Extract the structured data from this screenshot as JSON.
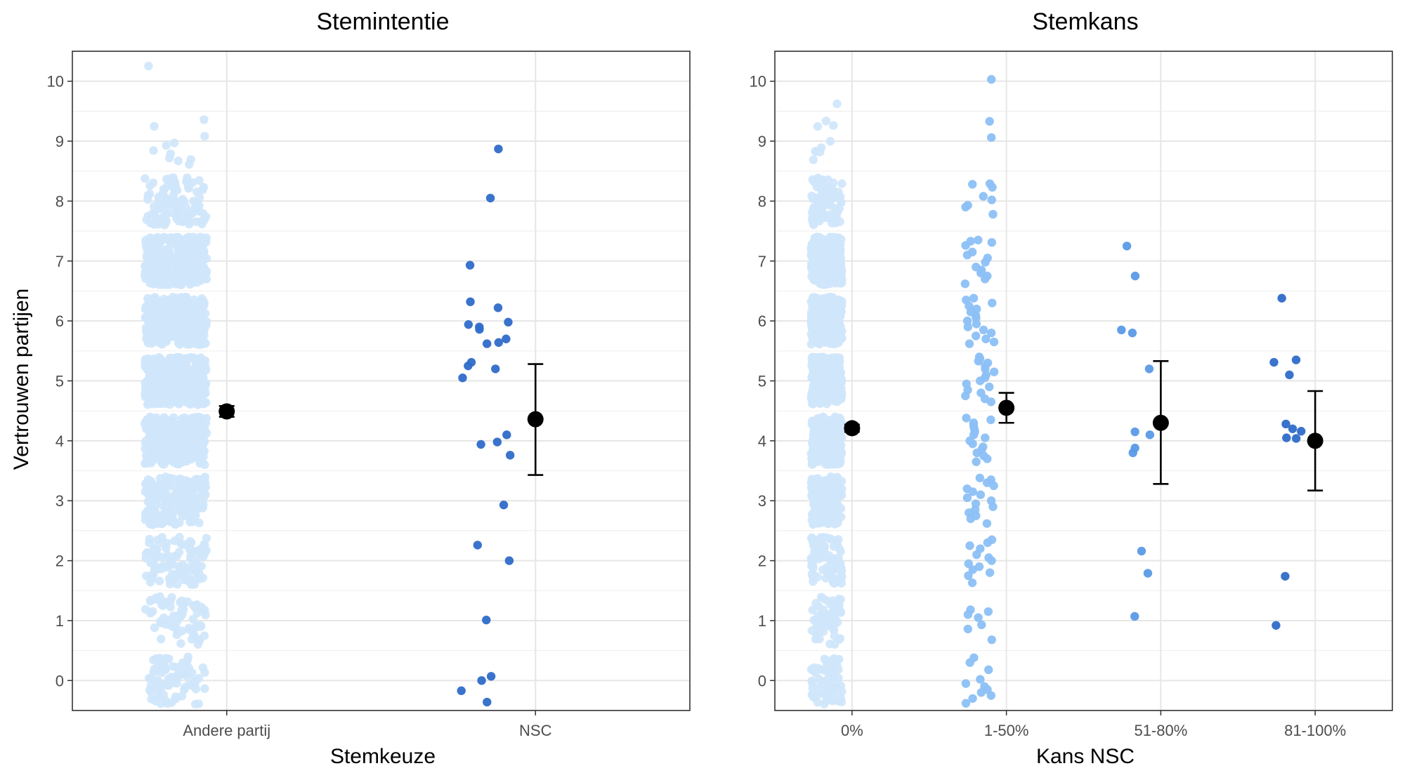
{
  "figure": {
    "y_axis_label": "Vertrouwen partijen"
  },
  "chart_data": [
    {
      "type": "scatter",
      "title": "Stemintentie",
      "xlabel": "Stemkeuze",
      "ylabel": "Vertrouwen partijen",
      "categories": [
        "Andere partij",
        "NSC"
      ],
      "ylim": [
        -0.5,
        10.5
      ],
      "yticks": [
        0,
        1,
        2,
        3,
        4,
        5,
        6,
        7,
        8,
        9,
        10
      ],
      "grid": true,
      "point_colors": [
        "#cfe6fb",
        "#2f6bc9"
      ],
      "jitter_points": [
        {
          "category": "Andere partij",
          "color": "#cfe6fb",
          "n": 1800,
          "levels": [
            0,
            1,
            2,
            3,
            4,
            5,
            6,
            7,
            8,
            9,
            10
          ],
          "weights": [
            70,
            60,
            90,
            170,
            260,
            280,
            300,
            280,
            90,
            10,
            1
          ]
        },
        {
          "category": "NSC",
          "color": "#2f6bc9",
          "values": [
            8.87,
            8.05,
            6.93,
            6.32,
            6.22,
            5.98,
            5.94,
            5.9,
            5.86,
            5.7,
            5.64,
            5.62,
            5.31,
            5.25,
            5.2,
            5.05,
            4.1,
            3.98,
            3.94,
            3.76,
            2.93,
            2.26,
            2.0,
            1.01,
            0.07,
            0.0,
            -0.17,
            -0.36
          ]
        }
      ],
      "summary": [
        {
          "category": "Andere partij",
          "mean": 4.49,
          "ci_low": 4.4,
          "ci_high": 4.58
        },
        {
          "category": "NSC",
          "mean": 4.36,
          "ci_low": 3.43,
          "ci_high": 5.28
        }
      ]
    },
    {
      "type": "scatter",
      "title": "Stemkans",
      "xlabel": "Kans NSC",
      "ylabel": "Vertrouwen partijen",
      "categories": [
        "0%",
        "1-50%",
        "51-80%",
        "81-100%"
      ],
      "ylim": [
        -0.5,
        10.5
      ],
      "yticks": [
        0,
        1,
        2,
        3,
        4,
        5,
        6,
        7,
        8,
        9,
        10
      ],
      "grid": true,
      "point_colors": [
        "#cfe6fb",
        "#8cc0f5",
        "#5a9ae6",
        "#2f6bc9"
      ],
      "jitter_points": [
        {
          "category": "0%",
          "color": "#cfe6fb",
          "n": 1500,
          "levels": [
            0,
            1,
            2,
            3,
            4,
            5,
            6,
            7,
            8,
            9,
            10
          ],
          "weights": [
            80,
            70,
            90,
            170,
            260,
            280,
            300,
            280,
            90,
            10,
            1
          ]
        },
        {
          "category": "1-50%",
          "color": "#8cc0f5",
          "values": [
            10.03,
            9.33,
            9.06,
            8.29,
            8.28,
            8.23,
            8.08,
            8.02,
            7.93,
            7.9,
            7.78,
            7.35,
            7.33,
            7.31,
            7.26,
            7.15,
            7.1,
            7.05,
            6.98,
            6.9,
            6.85,
            6.8,
            6.75,
            6.7,
            6.62,
            6.38,
            6.35,
            6.3,
            6.25,
            6.2,
            6.15,
            6.1,
            6.05,
            6.0,
            5.95,
            5.9,
            5.85,
            5.8,
            5.75,
            5.7,
            5.65,
            5.62,
            5.4,
            5.37,
            5.33,
            5.3,
            5.25,
            5.2,
            5.15,
            5.1,
            5.05,
            5.0,
            4.95,
            4.9,
            4.85,
            4.8,
            4.75,
            4.7,
            4.65,
            4.38,
            4.35,
            4.3,
            4.25,
            4.2,
            4.15,
            4.1,
            4.05,
            4.0,
            3.95,
            3.9,
            3.85,
            3.8,
            3.75,
            3.7,
            3.65,
            3.38,
            3.35,
            3.3,
            3.25,
            3.2,
            3.15,
            3.1,
            3.05,
            3.0,
            2.95,
            2.9,
            2.85,
            2.8,
            2.75,
            2.7,
            2.62,
            2.35,
            2.3,
            2.25,
            2.2,
            2.1,
            2.05,
            2.0,
            1.95,
            1.9,
            1.85,
            1.8,
            1.75,
            1.63,
            1.18,
            1.15,
            1.1,
            1.05,
            0.93,
            0.86,
            0.68,
            0.38,
            0.3,
            0.18,
            0.02,
            -0.05,
            -0.1,
            -0.15,
            -0.2,
            -0.25,
            -0.3,
            -0.38
          ]
        },
        {
          "category": "51-80%",
          "color": "#5a9ae6",
          "values": [
            7.25,
            6.75,
            5.85,
            5.8,
            5.2,
            4.15,
            4.1,
            3.88,
            3.8,
            2.16,
            1.79,
            1.07
          ]
        },
        {
          "category": "81-100%",
          "color": "#2f6bc9",
          "values": [
            6.38,
            5.35,
            5.31,
            5.1,
            4.28,
            4.2,
            4.16,
            4.05,
            4.04,
            1.74,
            0.92
          ]
        }
      ],
      "summary": [
        {
          "category": "0%",
          "mean": 4.21,
          "ci_low": 4.15,
          "ci_high": 4.27
        },
        {
          "category": "1-50%",
          "mean": 4.55,
          "ci_low": 4.3,
          "ci_high": 4.8
        },
        {
          "category": "51-80%",
          "mean": 4.3,
          "ci_low": 3.28,
          "ci_high": 5.33
        },
        {
          "category": "81-100%",
          "mean": 4.0,
          "ci_low": 3.17,
          "ci_high": 4.83
        }
      ]
    }
  ]
}
